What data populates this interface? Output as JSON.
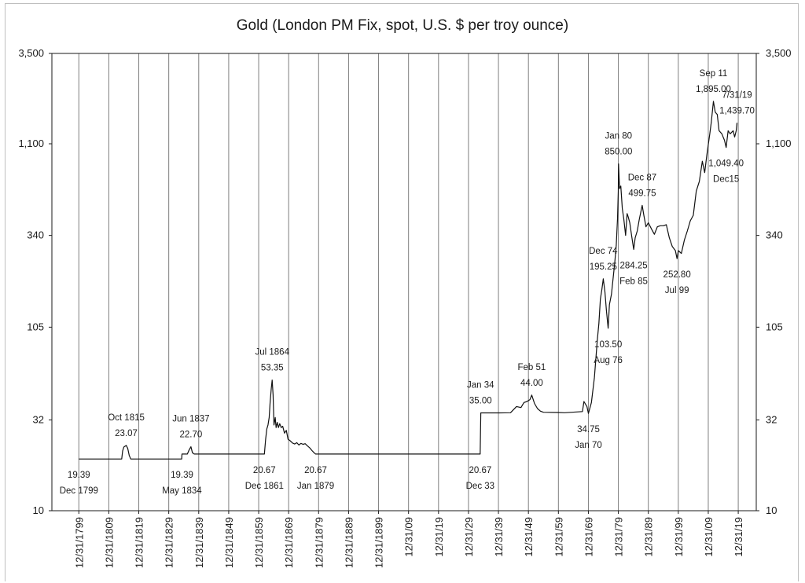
{
  "chart_data": {
    "type": "line",
    "title": "Gold (London PM Fix, spot, U.S. $ per troy ounce)",
    "y_scale": "log",
    "ylim": [
      10,
      3500
    ],
    "xlim": [
      1791,
      2026
    ],
    "y_ticks": [
      "10",
      "32",
      "105",
      "340",
      "1,100",
      "3,500"
    ],
    "y_tick_values": [
      10,
      32,
      105,
      340,
      1100,
      3500
    ],
    "x_ticks": [
      "12/31/1799",
      "12/31/1809",
      "12/31/1819",
      "12/31/1829",
      "12/31/1839",
      "12/31/1849",
      "12/31/1859",
      "12/31/1869",
      "12/31/1879",
      "12/31/1889",
      "12/31/1899",
      "12/31/09",
      "12/31/19",
      "12/31/29",
      "12/31/39",
      "12/31/49",
      "12/31/59",
      "12/31/69",
      "12/31/79",
      "12/31/89",
      "12/31/99",
      "12/31/09",
      "12/31/19"
    ],
    "x_tick_years": [
      1799.99,
      1809.99,
      1819.99,
      1829.99,
      1839.99,
      1849.99,
      1859.99,
      1869.99,
      1879.99,
      1889.99,
      1899.99,
      1909.99,
      1919.99,
      1929.99,
      1939.99,
      1949.99,
      1959.99,
      1969.99,
      1979.99,
      1989.99,
      1999.99,
      2009.99,
      2019.99
    ],
    "grid": "vertical",
    "series": [
      {
        "points": [
          [
            1800.0,
            19.39
          ],
          [
            1814.3,
            19.39
          ],
          [
            1814.6,
            21.5
          ],
          [
            1815.0,
            22.6
          ],
          [
            1815.8,
            23.07
          ],
          [
            1816.3,
            22.2
          ],
          [
            1816.8,
            20.3
          ],
          [
            1817.3,
            19.39
          ],
          [
            1834.3,
            19.39
          ],
          [
            1834.4,
            20.67
          ],
          [
            1836.2,
            20.67
          ],
          [
            1836.8,
            21.8
          ],
          [
            1837.4,
            22.7
          ],
          [
            1837.9,
            21.0
          ],
          [
            1838.5,
            20.67
          ],
          [
            1861.9,
            20.67
          ],
          [
            1862.3,
            25.0
          ],
          [
            1862.7,
            28.5
          ],
          [
            1863.1,
            30.0
          ],
          [
            1863.5,
            33.0
          ],
          [
            1863.8,
            40.0
          ],
          [
            1864.2,
            48.0
          ],
          [
            1864.5,
            53.35
          ],
          [
            1864.8,
            44.0
          ],
          [
            1865.1,
            30.0
          ],
          [
            1865.5,
            33.0
          ],
          [
            1865.8,
            29.0
          ],
          [
            1866.2,
            31.0
          ],
          [
            1866.6,
            29.0
          ],
          [
            1867.0,
            30.5
          ],
          [
            1867.5,
            29.0
          ],
          [
            1868.0,
            29.5
          ],
          [
            1868.6,
            27.0
          ],
          [
            1869.2,
            28.0
          ],
          [
            1869.8,
            25.0
          ],
          [
            1870.5,
            24.5
          ],
          [
            1871.3,
            23.8
          ],
          [
            1872.0,
            23.5
          ],
          [
            1872.7,
            23.9
          ],
          [
            1873.4,
            23.2
          ],
          [
            1874.1,
            23.7
          ],
          [
            1874.8,
            23.4
          ],
          [
            1875.5,
            23.6
          ],
          [
            1876.2,
            23.0
          ],
          [
            1877.0,
            22.4
          ],
          [
            1877.8,
            21.6
          ],
          [
            1878.5,
            21.0
          ],
          [
            1879.0,
            20.67
          ],
          [
            1933.9,
            20.67
          ],
          [
            1934.1,
            35.0
          ],
          [
            1940.0,
            35.0
          ],
          [
            1944.0,
            35.1
          ],
          [
            1946.0,
            38.0
          ],
          [
            1947.5,
            37.5
          ],
          [
            1948.5,
            40.0
          ],
          [
            1949.5,
            40.5
          ],
          [
            1950.5,
            41.5
          ],
          [
            1951.1,
            44.0
          ],
          [
            1952.0,
            39.5
          ],
          [
            1953.0,
            37.0
          ],
          [
            1954.0,
            35.8
          ],
          [
            1955.0,
            35.3
          ],
          [
            1960.0,
            35.2
          ],
          [
            1962.0,
            35.1
          ],
          [
            1968.0,
            35.6
          ],
          [
            1968.5,
            40.5
          ],
          [
            1969.5,
            38.0
          ],
          [
            1970.0,
            34.75
          ],
          [
            1971.0,
            40.0
          ],
          [
            1972.0,
            55.0
          ],
          [
            1973.0,
            90.0
          ],
          [
            1973.5,
            110.0
          ],
          [
            1974.0,
            150.0
          ],
          [
            1974.5,
            170.0
          ],
          [
            1974.95,
            195.25
          ],
          [
            1975.5,
            165.0
          ],
          [
            1976.0,
            130.0
          ],
          [
            1976.6,
            103.5
          ],
          [
            1977.0,
            140.0
          ],
          [
            1977.7,
            160.0
          ],
          [
            1978.3,
            200.0
          ],
          [
            1978.8,
            240.0
          ],
          [
            1979.3,
            300.0
          ],
          [
            1979.7,
            420.0
          ],
          [
            1979.98,
            600.0
          ],
          [
            1980.05,
            850.0
          ],
          [
            1980.4,
            620.0
          ],
          [
            1980.8,
            640.0
          ],
          [
            1981.3,
            480.0
          ],
          [
            1981.8,
            420.0
          ],
          [
            1982.4,
            340.0
          ],
          [
            1982.9,
            450.0
          ],
          [
            1983.3,
            430.0
          ],
          [
            1983.8,
            400.0
          ],
          [
            1984.4,
            340.0
          ],
          [
            1985.1,
            284.25
          ],
          [
            1985.6,
            330.0
          ],
          [
            1986.3,
            360.0
          ],
          [
            1987.0,
            420.0
          ],
          [
            1987.95,
            499.75
          ],
          [
            1988.5,
            440.0
          ],
          [
            1989.2,
            380.0
          ],
          [
            1990.0,
            400.0
          ],
          [
            1991.0,
            370.0
          ],
          [
            1992.0,
            345.0
          ],
          [
            1993.0,
            380.0
          ],
          [
            1994.0,
            385.0
          ],
          [
            1995.0,
            385.0
          ],
          [
            1996.0,
            390.0
          ],
          [
            1997.0,
            330.0
          ],
          [
            1998.0,
            295.0
          ],
          [
            1999.0,
            280.0
          ],
          [
            1999.55,
            252.8
          ],
          [
            2000.0,
            280.0
          ],
          [
            2001.0,
            270.0
          ],
          [
            2002.0,
            320.0
          ],
          [
            2003.0,
            360.0
          ],
          [
            2004.0,
            410.0
          ],
          [
            2005.0,
            440.0
          ],
          [
            2006.0,
            600.0
          ],
          [
            2007.0,
            680.0
          ],
          [
            2008.0,
            880.0
          ],
          [
            2008.8,
            760.0
          ],
          [
            2009.5,
            950.0
          ],
          [
            2010.5,
            1250.0
          ],
          [
            2011.0,
            1450.0
          ],
          [
            2011.7,
            1895.0
          ],
          [
            2012.3,
            1650.0
          ],
          [
            2013.0,
            1600.0
          ],
          [
            2013.6,
            1300.0
          ],
          [
            2014.5,
            1250.0
          ],
          [
            2015.4,
            1150.0
          ],
          [
            2015.95,
            1049.4
          ],
          [
            2016.6,
            1300.0
          ],
          [
            2017.3,
            1250.0
          ],
          [
            2018.3,
            1300.0
          ],
          [
            2018.8,
            1200.0
          ],
          [
            2019.3,
            1300.0
          ],
          [
            2019.58,
            1439.7
          ]
        ]
      }
    ],
    "annotations": [
      {
        "lines": [
          "19.39",
          "Dec 1799"
        ],
        "x": 1800.0,
        "y": 19.39,
        "pos": "below"
      },
      {
        "lines": [
          "Oct 1815",
          "23.07"
        ],
        "x": 1815.8,
        "y": 23.07,
        "pos": "above"
      },
      {
        "lines": [
          "19.39",
          "May 1834"
        ],
        "x": 1834.4,
        "y": 19.39,
        "pos": "below"
      },
      {
        "lines": [
          "Jun 1837",
          "22.70"
        ],
        "x": 1837.4,
        "y": 22.7,
        "pos": "above"
      },
      {
        "lines": [
          "Jul 1864",
          "53.35"
        ],
        "x": 1864.5,
        "y": 53.35,
        "pos": "above"
      },
      {
        "lines": [
          "20.67",
          "Dec 1861"
        ],
        "x": 1861.9,
        "y": 20.67,
        "pos": "below"
      },
      {
        "lines": [
          "20.67",
          "Jan 1879"
        ],
        "x": 1879.0,
        "y": 20.67,
        "pos": "below"
      },
      {
        "lines": [
          "Jan 34",
          "35.00"
        ],
        "x": 1934.0,
        "y": 35.0,
        "pos": "above"
      },
      {
        "lines": [
          "20.67",
          "Dec 33"
        ],
        "x": 1933.9,
        "y": 20.67,
        "pos": "below"
      },
      {
        "lines": [
          "Feb 51",
          "44.00"
        ],
        "x": 1951.1,
        "y": 44.0,
        "pos": "above"
      },
      {
        "lines": [
          "34.75",
          "Jan 70"
        ],
        "x": 1970.0,
        "y": 34.75,
        "pos": "below"
      },
      {
        "lines": [
          "Dec 74",
          "195.25"
        ],
        "x": 1974.95,
        "y": 195.25,
        "pos": "above"
      },
      {
        "lines": [
          "103.50",
          "Aug 76"
        ],
        "x": 1976.6,
        "y": 103.5,
        "pos": "below"
      },
      {
        "lines": [
          "Jan 80",
          "850.00"
        ],
        "x": 1980.05,
        "y": 850.0,
        "pos": "above"
      },
      {
        "lines": [
          "Dec 87",
          "499.75"
        ],
        "x": 1987.95,
        "y": 499.75,
        "pos": "above"
      },
      {
        "lines": [
          "284.25",
          "Feb 85"
        ],
        "x": 1985.1,
        "y": 284.25,
        "pos": "below"
      },
      {
        "lines": [
          "252.80",
          "Jul 99"
        ],
        "x": 1999.55,
        "y": 252.8,
        "pos": "below"
      },
      {
        "lines": [
          "Sep 11",
          "1,895.00"
        ],
        "x": 2011.7,
        "y": 1895.0,
        "pos": "above"
      },
      {
        "lines": [
          "7/31/19",
          "1,439.70"
        ],
        "x": 2019.58,
        "y": 1439.7,
        "pos": "above"
      },
      {
        "lines": [
          "1,049.40",
          "Dec15"
        ],
        "x": 2015.95,
        "y": 1049.4,
        "pos": "below"
      }
    ]
  }
}
